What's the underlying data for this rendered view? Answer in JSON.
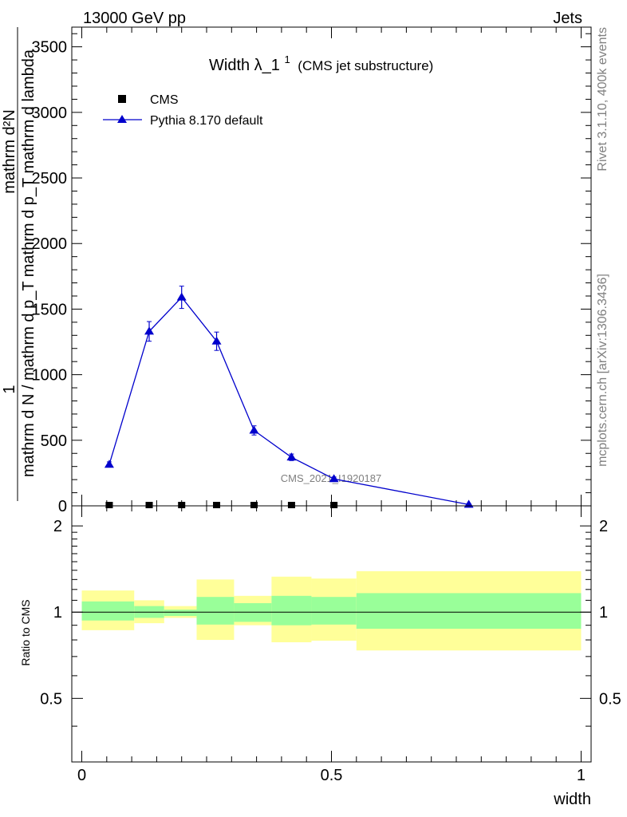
{
  "header": {
    "left": "13000 GeV pp",
    "right": "Jets"
  },
  "side_labels": {
    "rivet": "Rivet 3.1.10,  400k events",
    "mcplots": "mcplots.cern.ch [arXiv:1306.3436]"
  },
  "watermark": "CMS_2021_I1920187",
  "chart_data": [
    {
      "type": "line",
      "title_main": "Width λ_1",
      "title_sup": "1",
      "title_suffix": "(CMS jet substructure)",
      "ylabel_numerator": "1",
      "ylabel_denominator": "mathrm d N / mathrm d p_T mathrm d p_T mathrm d lambda",
      "ylabel_overlay": "mathrm d²N",
      "ylim": [
        0,
        3650
      ],
      "xlim": [
        -0.02,
        1.02
      ],
      "yticks": [
        0,
        500,
        1000,
        1500,
        2000,
        2500,
        3000,
        3500
      ],
      "ytick_labels": [
        "0",
        "500",
        "1000",
        "1500",
        "2000",
        "2500",
        "3000",
        "3500"
      ],
      "legend_position": "top-left",
      "colors": {
        "pythia": "#0000cc",
        "cms": "#000000"
      },
      "series": [
        {
          "name": "CMS",
          "marker": "square",
          "x": [
            0.055,
            0.135,
            0.2,
            0.27,
            0.345,
            0.42,
            0.505
          ],
          "y": [
            0,
            0,
            0,
            0,
            0,
            0,
            0
          ]
        },
        {
          "name": "Pythia 8.170 default",
          "marker": "triangle",
          "x": [
            0.055,
            0.135,
            0.2,
            0.27,
            0.345,
            0.42,
            0.505,
            0.775
          ],
          "y": [
            315,
            1330,
            1590,
            1255,
            575,
            370,
            205,
            10
          ],
          "yerr": [
            20,
            75,
            85,
            70,
            35,
            25,
            15,
            5
          ]
        }
      ]
    },
    {
      "type": "area",
      "ylabel": "Ratio to CMS",
      "xlabel": "width",
      "ylim": [
        0.3,
        2.35
      ],
      "log_scale": true,
      "yticks": [
        0.5,
        1,
        2
      ],
      "ytick_labels": [
        "0.5",
        "1",
        "2"
      ],
      "xticks": [
        0,
        0.5,
        1
      ],
      "xtick_labels": [
        "0",
        "0.5",
        "1"
      ],
      "colors": {
        "inner": "#99ff99",
        "outer": "#ffff99"
      },
      "bands": [
        {
          "xlo": 0.0,
          "xhi": 0.105,
          "inner": [
            0.935,
            1.09
          ],
          "outer": [
            0.865,
            1.19
          ]
        },
        {
          "xlo": 0.105,
          "xhi": 0.165,
          "inner": [
            0.955,
            1.05
          ],
          "outer": [
            0.915,
            1.1
          ]
        },
        {
          "xlo": 0.165,
          "xhi": 0.23,
          "inner": [
            0.97,
            1.02
          ],
          "outer": [
            0.955,
            1.05
          ]
        },
        {
          "xlo": 0.23,
          "xhi": 0.305,
          "inner": [
            0.905,
            1.13
          ],
          "outer": [
            0.8,
            1.3
          ]
        },
        {
          "xlo": 0.305,
          "xhi": 0.38,
          "inner": [
            0.925,
            1.075
          ],
          "outer": [
            0.9,
            1.14
          ]
        },
        {
          "xlo": 0.38,
          "xhi": 0.46,
          "inner": [
            0.9,
            1.14
          ],
          "outer": [
            0.785,
            1.33
          ]
        },
        {
          "xlo": 0.46,
          "xhi": 0.55,
          "inner": [
            0.905,
            1.13
          ],
          "outer": [
            0.795,
            1.31
          ]
        },
        {
          "xlo": 0.55,
          "xhi": 1.0,
          "inner": [
            0.875,
            1.165
          ],
          "outer": [
            0.735,
            1.39
          ]
        }
      ]
    }
  ]
}
